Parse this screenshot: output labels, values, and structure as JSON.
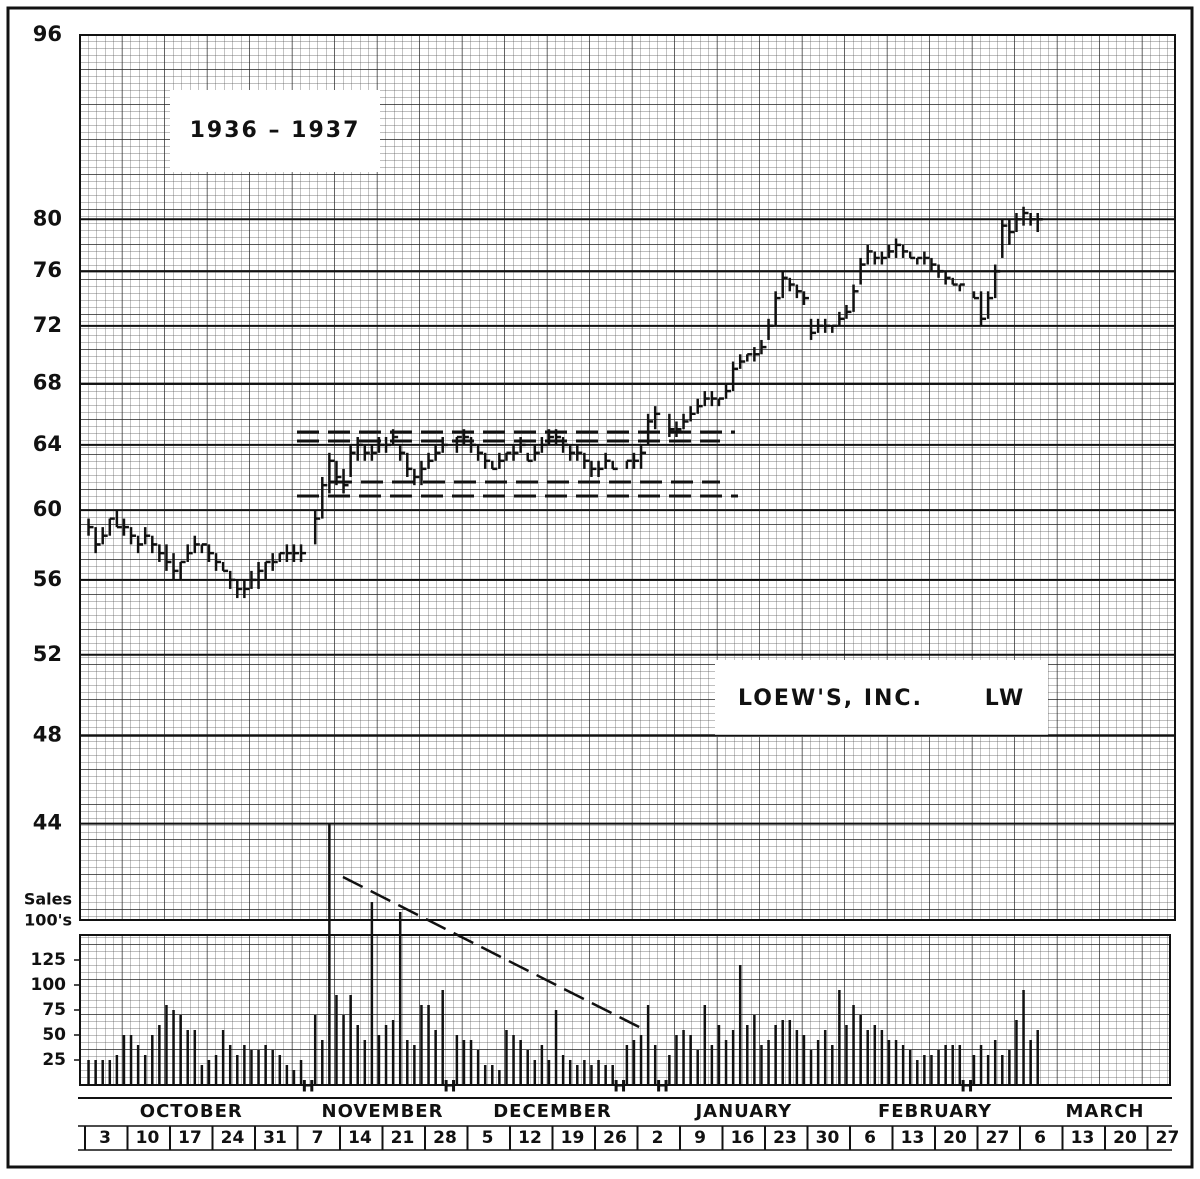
{
  "chart_data": {
    "type": "hlc",
    "title": "1936 – 1937",
    "company": "LOEW'S, INC.",
    "symbol": "LW",
    "volume_label_line1": "Sales",
    "volume_label_line2": "100's",
    "holiday_marker": "H",
    "log_scale": true,
    "grid": true,
    "color": "#111111",
    "ylim": [
      40,
      96
    ],
    "yticks": [
      44,
      48,
      52,
      56,
      60,
      64,
      68,
      72,
      76,
      80,
      96
    ],
    "volume_ylim": [
      0,
      150
    ],
    "volume_yticks": [
      25,
      50,
      75,
      100,
      125
    ],
    "months": [
      {
        "name": "OCTOBER",
        "weeks": [
          {
            "label": "3",
            "high": [
              59.5,
              59,
              59,
              59.5,
              60,
              59.5
            ],
            "low": [
              58.5,
              57.5,
              58,
              58.5,
              59,
              58.5
            ],
            "close": [
              59,
              58,
              58.5,
              59.5,
              59,
              59
            ],
            "volume": [
              25,
              25,
              25,
              25,
              30,
              50
            ]
          },
          {
            "label": "10",
            "high": [
              59,
              58.5,
              59,
              58.5,
              58,
              58
            ],
            "low": [
              58,
              57.5,
              58,
              57.5,
              57,
              56.5
            ],
            "close": [
              58.5,
              58,
              58.5,
              58,
              57.5,
              57
            ],
            "volume": [
              50,
              40,
              30,
              50,
              60,
              80
            ]
          },
          {
            "label": "17",
            "high": [
              57.5,
              57,
              58,
              58.5,
              58,
              58
            ],
            "low": [
              56,
              56,
              57,
              57.5,
              57.5,
              57
            ],
            "close": [
              56.5,
              57,
              57.5,
              58,
              58,
              57.5
            ],
            "volume": [
              75,
              70,
              55,
              55,
              20,
              25
            ]
          },
          {
            "label": "24",
            "high": [
              57.5,
              57,
              56.5,
              56,
              56,
              56.5
            ],
            "low": [
              56.5,
              56.5,
              55.5,
              55,
              55,
              55.5
            ],
            "close": [
              57,
              56.5,
              56,
              55.5,
              55.5,
              56
            ],
            "volume": [
              30,
              55,
              40,
              30,
              40,
              35
            ]
          },
          {
            "label": "31",
            "high": [
              57,
              57,
              57.5,
              57.5,
              58,
              58
            ],
            "low": [
              55.5,
              56,
              56.5,
              57,
              57,
              57
            ],
            "close": [
              56.5,
              57,
              57,
              57.5,
              57.5,
              57.5
            ],
            "volume": [
              35,
              40,
              35,
              30,
              20,
              15
            ]
          }
        ]
      },
      {
        "name": "NOVEMBER",
        "weeks": [
          {
            "label": "7",
            "high": [
              58,
              null,
              60,
              62,
              63.5,
              63
            ],
            "low": [
              57,
              null,
              58,
              59.5,
              61,
              61.5
            ],
            "close": [
              57.5,
              null,
              59.5,
              61.5,
              63,
              62
            ],
            "volume": [
              25,
              null,
              70,
              45,
              262,
              90
            ]
          },
          {
            "label": "14",
            "high": [
              62.5,
              64,
              64.5,
              64,
              64,
              64.5
            ],
            "low": [
              61,
              62,
              63,
              63,
              63,
              63.5
            ],
            "close": [
              61.5,
              63.5,
              64,
              63.5,
              63.5,
              64
            ],
            "volume": [
              70,
              90,
              60,
              45,
              183,
              50
            ]
          },
          {
            "label": "21",
            "high": [
              64.5,
              65,
              64,
              63.5,
              62.5,
              63
            ],
            "low": [
              63.5,
              64,
              63,
              62,
              61.5,
              61.5
            ],
            "close": [
              64,
              64.5,
              63.5,
              62.5,
              62,
              62.5
            ],
            "volume": [
              60,
              65,
              173,
              45,
              40,
              80
            ]
          },
          {
            "label": "28",
            "high": [
              63.5,
              64,
              64.5,
              null,
              64.5,
              65
            ],
            "low": [
              62.5,
              63,
              63.5,
              null,
              63.5,
              64
            ],
            "close": [
              63,
              63.5,
              64,
              null,
              64.5,
              64.5
            ],
            "volume": [
              80,
              55,
              95,
              null,
              50,
              45
            ]
          }
        ]
      },
      {
        "name": "DECEMBER",
        "weeks": [
          {
            "label": "5",
            "high": [
              64.5,
              64,
              63.5,
              63,
              63.5,
              63.5
            ],
            "low": [
              63.5,
              63,
              62.5,
              62.5,
              62.5,
              63
            ],
            "close": [
              64,
              63.5,
              63,
              62.5,
              63,
              63.5
            ],
            "volume": [
              45,
              35,
              20,
              20,
              15,
              55
            ]
          },
          {
            "label": "12",
            "high": [
              64,
              64.5,
              63.5,
              64,
              64.5,
              65
            ],
            "low": [
              63,
              63.5,
              63,
              63,
              63.5,
              64
            ],
            "close": [
              63.5,
              64,
              63,
              63.5,
              64,
              64.5
            ],
            "volume": [
              50,
              45,
              35,
              25,
              40,
              25
            ]
          },
          {
            "label": "19",
            "high": [
              65,
              64.5,
              64,
              64,
              63.5,
              63
            ],
            "low": [
              64,
              63.5,
              63,
              63,
              62.5,
              62
            ],
            "close": [
              64.5,
              64,
              63.5,
              63.5,
              63,
              62.5
            ],
            "volume": [
              75,
              30,
              25,
              20,
              25,
              20
            ]
          },
          {
            "label": "26",
            "high": [
              63,
              63.5,
              63,
              null,
              63,
              63.5
            ],
            "low": [
              62,
              62.5,
              62.5,
              null,
              62.5,
              62.5
            ],
            "close": [
              62.5,
              63,
              62.5,
              null,
              63,
              63
            ],
            "volume": [
              25,
              20,
              20,
              null,
              40,
              45
            ]
          }
        ]
      },
      {
        "name": "JANUARY",
        "weeks": [
          {
            "label": "2",
            "high": [
              64,
              66,
              66.5,
              null,
              66,
              65.5
            ],
            "low": [
              62.5,
              64,
              65,
              null,
              64.5,
              64.5
            ],
            "close": [
              63.5,
              65.5,
              66,
              null,
              65,
              65
            ],
            "volume": [
              50,
              80,
              40,
              null,
              30,
              50
            ]
          },
          {
            "label": "9",
            "high": [
              66,
              66.5,
              67,
              67.5,
              67.5,
              67
            ],
            "low": [
              65,
              65.5,
              66,
              66.5,
              66.5,
              66.5
            ],
            "close": [
              65.5,
              66,
              66.5,
              67,
              67,
              67
            ],
            "volume": [
              55,
              50,
              35,
              80,
              40,
              60
            ]
          },
          {
            "label": "16",
            "high": [
              68,
              69.5,
              70,
              70,
              70.5,
              71
            ],
            "low": [
              67,
              67.5,
              69,
              69.5,
              69.5,
              70
            ],
            "close": [
              67.5,
              69,
              69.5,
              70,
              70,
              70.5
            ],
            "volume": [
              45,
              55,
              120,
              60,
              70,
              40
            ]
          },
          {
            "label": "23",
            "high": [
              72.5,
              74.5,
              76,
              75.5,
              75,
              74.5
            ],
            "low": [
              71,
              72,
              74,
              74.5,
              74,
              73.5
            ],
            "close": [
              72,
              74,
              75.5,
              75,
              74.5,
              74
            ],
            "volume": [
              45,
              60,
              65,
              65,
              55,
              50
            ]
          },
          {
            "label": "30",
            "high": [
              72.5,
              72.5,
              72.5,
              72,
              73,
              73.5
            ],
            "low": [
              71,
              71.5,
              71.5,
              71.5,
              72,
              72.5
            ],
            "close": [
              71.5,
              72,
              72,
              72,
              72.5,
              73
            ],
            "volume": [
              35,
              45,
              55,
              40,
              95,
              60
            ]
          }
        ]
      },
      {
        "name": "FEBRUARY",
        "weeks": [
          {
            "label": "6",
            "high": [
              75,
              77,
              78,
              77.5,
              77.5,
              78
            ],
            "low": [
              73,
              75,
              76.5,
              76.5,
              76.5,
              77
            ],
            "close": [
              74.5,
              76.5,
              77.5,
              77,
              77,
              77.5
            ],
            "volume": [
              80,
              70,
              55,
              60,
              55,
              45
            ]
          },
          {
            "label": "13",
            "high": [
              78.5,
              78,
              77.5,
              77,
              77.5,
              77
            ],
            "low": [
              77,
              77,
              77,
              76.5,
              76.5,
              76
            ],
            "close": [
              78,
              77.5,
              77,
              77,
              77,
              76.5
            ],
            "volume": [
              45,
              40,
              35,
              25,
              30,
              30
            ]
          },
          {
            "label": "20",
            "high": [
              76.5,
              76,
              75.5,
              75,
              null,
              74.5
            ],
            "low": [
              75.5,
              75,
              75,
              74.5,
              null,
              74
            ],
            "close": [
              76,
              75.5,
              75,
              75,
              null,
              74
            ],
            "volume": [
              35,
              40,
              40,
              40,
              null,
              30
            ]
          },
          {
            "label": "27",
            "high": [
              74.5,
              74.5,
              76.5,
              80,
              80,
              80.5
            ],
            "low": [
              72,
              72.5,
              74,
              77,
              78,
              79
            ],
            "close": [
              72.5,
              74,
              76,
              79.5,
              79,
              80
            ],
            "volume": [
              40,
              30,
              45,
              30,
              35,
              65
            ]
          }
        ]
      },
      {
        "name": "MARCH",
        "weeks": [
          {
            "label": "6",
            "high": [
              81,
              80.5,
              80.5
            ],
            "low": [
              79.5,
              79.5,
              79
            ],
            "close": [
              80.5,
              80,
              80
            ],
            "volume": [
              95,
              45,
              55
            ]
          },
          {
            "label": "13",
            "high": [],
            "low": [],
            "close": [],
            "volume": []
          },
          {
            "label": "20",
            "high": [],
            "low": [],
            "close": [],
            "volume": []
          },
          {
            "label": "27",
            "high": [],
            "low": [],
            "close": [],
            "volume": []
          }
        ]
      }
    ]
  }
}
